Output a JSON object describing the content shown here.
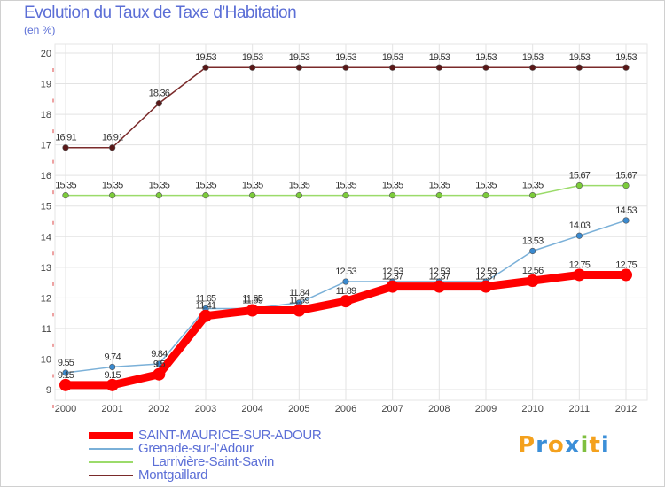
{
  "header": {
    "title": "Evolution du Taux de Taxe d'Habitation",
    "subtitle": "(en %)"
  },
  "logo": {
    "text": "Proxiti",
    "letters": [
      "P",
      "r",
      "o",
      "x",
      "i",
      "t",
      "i"
    ],
    "colors": [
      "#f4a11d",
      "#3c8fd8",
      "#f4a11d",
      "#3c8fd8",
      "#7fbf3f",
      "#f4a11d",
      "#3c8fd8"
    ]
  },
  "chart_data": {
    "type": "line",
    "title": "Evolution du Taux de Taxe d'Habitation",
    "ylabel": "(en %)",
    "xlabel": "",
    "ylim": [
      9,
      20
    ],
    "yticks": [
      9,
      10,
      11,
      12,
      13,
      14,
      15,
      16,
      17,
      18,
      19,
      20
    ],
    "categories": [
      "2000",
      "2001",
      "2002",
      "2003",
      "2004",
      "2005",
      "2006",
      "2007",
      "2008",
      "2009",
      "2010",
      "2011",
      "2012"
    ],
    "grid": true,
    "series": [
      {
        "name": "Montgaillard",
        "color": "#7a2a2a",
        "marker": "#5a1818",
        "values": [
          16.91,
          16.91,
          18.36,
          19.53,
          19.53,
          19.53,
          19.53,
          19.53,
          19.53,
          19.53,
          19.53,
          19.53,
          19.53
        ],
        "labels": [
          "16.91",
          "16.91",
          "18.36",
          "19.53",
          "19.53",
          "19.53",
          "19.53",
          "19.53",
          "19.53",
          "19.53",
          "19.53",
          "19.53",
          "19.53"
        ]
      },
      {
        "name": "Larrivière-Saint-Savin",
        "color": "#9bdb6a",
        "marker": "#7ccc3a",
        "values": [
          15.35,
          15.35,
          15.35,
          15.35,
          15.35,
          15.35,
          15.35,
          15.35,
          15.35,
          15.35,
          15.35,
          15.67,
          15.67
        ],
        "labels": [
          "15.35",
          "15.35",
          "15.35",
          "15.35",
          "15.35",
          "15.35",
          "15.35",
          "15.35",
          "15.35",
          "15.35",
          "15.35",
          "15.67",
          "15.67"
        ]
      },
      {
        "name": "Grenade-sur-l'Adour",
        "color": "#7ab0d8",
        "marker": "#3a8ad0",
        "values": [
          9.55,
          9.74,
          9.84,
          11.65,
          11.65,
          11.84,
          12.53,
          12.53,
          12.53,
          12.53,
          13.53,
          14.03,
          14.53
        ],
        "labels": [
          "9.55",
          "9.74",
          "9.84",
          "11.65",
          "11.65",
          "11.84",
          "12.53",
          "12.53",
          "12.53",
          "12.53",
          "13.53",
          "14.03",
          "14.53"
        ]
      },
      {
        "name": "SAINT-MAURICE-SUR-ADOUR",
        "color": "#ff0000",
        "marker": "#ff0000",
        "values": [
          9.15,
          9.15,
          9.5,
          11.41,
          11.59,
          11.59,
          11.89,
          12.37,
          12.37,
          12.37,
          12.56,
          12.75,
          12.75
        ],
        "labels": [
          "9.15",
          "9.15",
          "9.5",
          "11.41",
          "11.59",
          "11.59",
          "11.89",
          "12.37",
          "12.37",
          "12.37",
          "12.56",
          "12.75",
          "12.75"
        ]
      }
    ]
  },
  "legend": [
    {
      "label": "SAINT-MAURICE-SUR-ADOUR",
      "color": "#ff0000"
    },
    {
      "label": "Grenade-sur-l'Adour",
      "color": "#7ab0d8"
    },
    {
      "label": "    Larrivière-Saint-Savin",
      "color": "#9bdb6a"
    },
    {
      "label": "Montgaillard",
      "color": "#7a2a2a"
    }
  ]
}
